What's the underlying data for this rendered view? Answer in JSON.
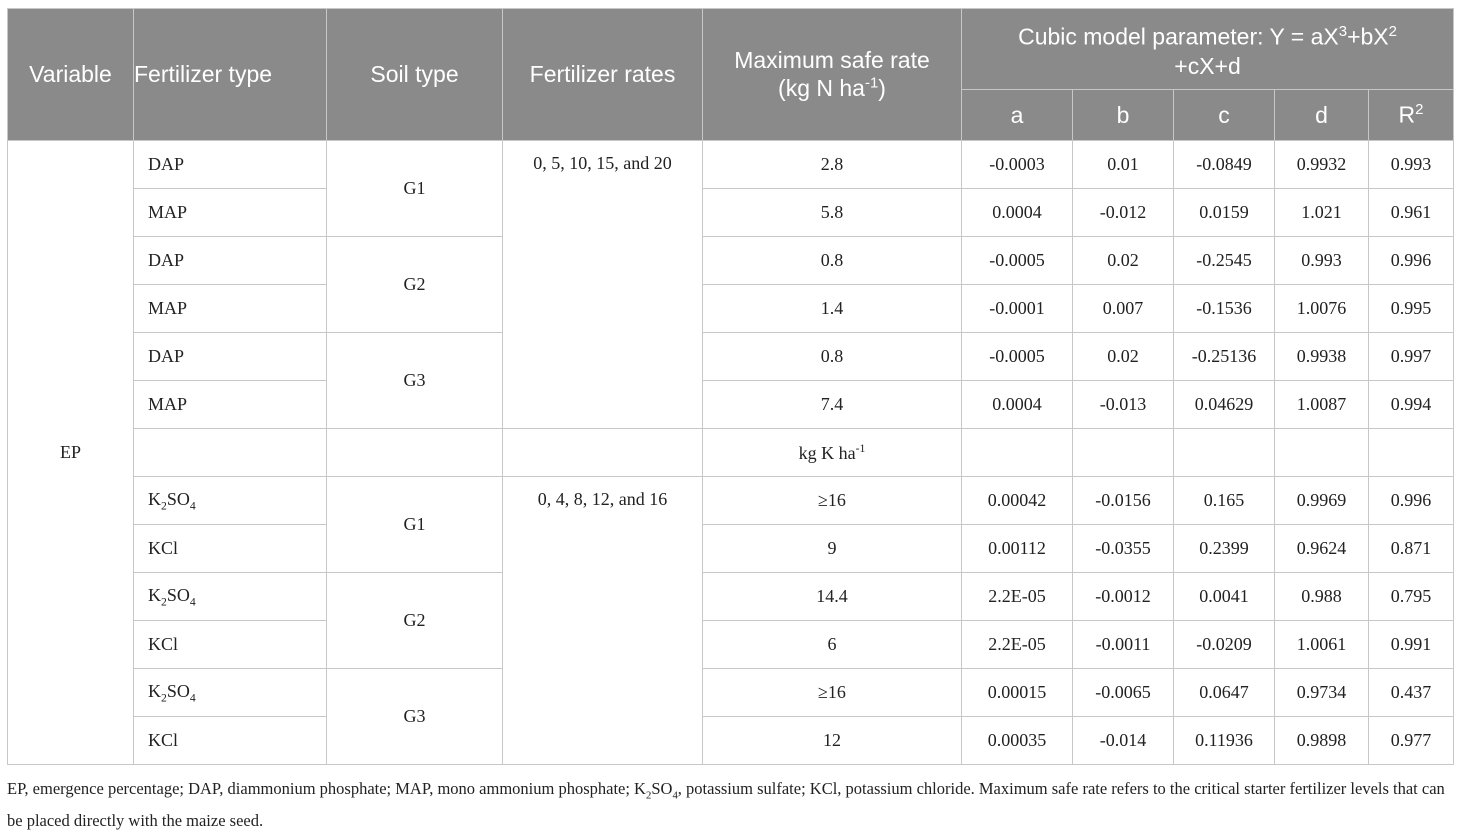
{
  "headers": {
    "variable": "Variable",
    "fertilizer_type": "Fertilizer type",
    "soil_type": "Soil type",
    "fertilizer_rates": "Fertilizer rates",
    "max_safe_rate": "Maximum safe rate",
    "max_safe_unit_prefix": "(kg N ha",
    "max_safe_unit_sup": "-1",
    "max_safe_unit_suffix": ")",
    "cubic_part1": "Cubic model parameter: Y = aX",
    "cubic_sup1": "3",
    "cubic_part2": "+bX",
    "cubic_sup2": "2",
    "cubic_part3": "+cX+d",
    "a": "a",
    "b": "b",
    "c": "c",
    "d": "d",
    "r2_base": "R",
    "r2_sup": "2"
  },
  "variable": "EP",
  "soils": {
    "g1": "G1",
    "g2": "G2",
    "g3": "G3"
  },
  "rates_n": "0, 5, 10, 15, and 20",
  "rates_k": "0, 4, 8, 12, and 16",
  "k_unit": {
    "prefix": "kg K ha",
    "sup": "-1"
  },
  "nitrogen_rows": [
    {
      "type": "DAP",
      "max": "2.8",
      "a": "-0.0003",
      "b": "0.01",
      "c": "-0.0849",
      "d": "0.9932",
      "r2": "0.993"
    },
    {
      "type": "MAP",
      "max": "5.8",
      "a": "0.0004",
      "b": "-0.012",
      "c": "0.0159",
      "d": "1.021",
      "r2": "0.961"
    },
    {
      "type": "DAP",
      "max": "0.8",
      "a": "-0.0005",
      "b": "0.02",
      "c": "-0.2545",
      "d": "0.993",
      "r2": "0.996"
    },
    {
      "type": "MAP",
      "max": "1.4",
      "a": "-0.0001",
      "b": "0.007",
      "c": "-0.1536",
      "d": "1.0076",
      "r2": "0.995"
    },
    {
      "type": "DAP",
      "max": "0.8",
      "a": "-0.0005",
      "b": "0.02",
      "c": "-0.25136",
      "d": "0.9938",
      "r2": "0.997"
    },
    {
      "type": "MAP",
      "max": "7.4",
      "a": "0.0004",
      "b": "-0.013",
      "c": "0.04629",
      "d": "1.0087",
      "r2": "0.994"
    }
  ],
  "potassium_rows": [
    {
      "type_pre": "K",
      "type_sub": "2",
      "type_post": "SO",
      "type_sub2": "4",
      "max": "≥16",
      "a": "0.00042",
      "b": "-0.0156",
      "c": "0.165",
      "d": "0.9969",
      "r2": "0.996"
    },
    {
      "type": "KCl",
      "max": "9",
      "a": "0.00112",
      "b": "-0.0355",
      "c": "0.2399",
      "d": "0.9624",
      "r2": "0.871"
    },
    {
      "type_pre": "K",
      "type_sub": "2",
      "type_post": "SO",
      "type_sub2": "4",
      "max": "14.4",
      "a": "2.2E-05",
      "b": "-0.0012",
      "c": "0.0041",
      "d": "0.988",
      "r2": "0.795"
    },
    {
      "type": "KCl",
      "max": "6",
      "a": "2.2E-05",
      "b": "-0.0011",
      "c": "-0.0209",
      "d": "1.0061",
      "r2": "0.991"
    },
    {
      "type_pre": "K",
      "type_sub": "2",
      "type_post": "SO",
      "type_sub2": "4",
      "max": "≥16",
      "a": "0.00015",
      "b": "-0.0065",
      "c": "0.0647",
      "d": "0.9734",
      "r2": "0.437"
    },
    {
      "type": "KCl",
      "max": "12",
      "a": "0.00035",
      "b": "-0.014",
      "c": "0.11936",
      "d": "0.9898",
      "r2": "0.977"
    }
  ],
  "footnote": {
    "part1": "EP, emergence percentage; DAP, diammonium phosphate; MAP, mono ammonium phosphate; K",
    "sub1": "2",
    "part2": "SO",
    "sub2": "4",
    "part3": ", potassium sulfate; KCl, potassium chloride. Maximum safe rate refers to the critical starter fertilizer levels that can be placed directly with the maize seed."
  }
}
